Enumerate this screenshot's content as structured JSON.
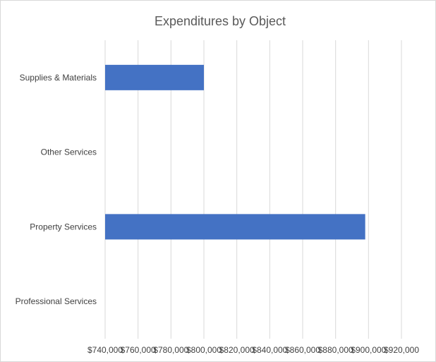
{
  "chart_data": {
    "type": "bar",
    "orientation": "horizontal",
    "title": "Expenditures by Object",
    "categories": [
      "Supplies & Materials",
      "Other Services",
      "Property Services",
      "Professional Services"
    ],
    "values": [
      800000,
      null,
      898000,
      null
    ],
    "xlim": [
      740000,
      920000
    ],
    "x_ticks": [
      "$740,000",
      "$760,000",
      "$780,000",
      "$800,000",
      "$820,000",
      "$840,000",
      "$860,000",
      "$880,000",
      "$900,000",
      "$920,000"
    ],
    "xlabel": "",
    "ylabel": "",
    "grid": true,
    "legend": "none",
    "bar_color": "#4472c4"
  }
}
